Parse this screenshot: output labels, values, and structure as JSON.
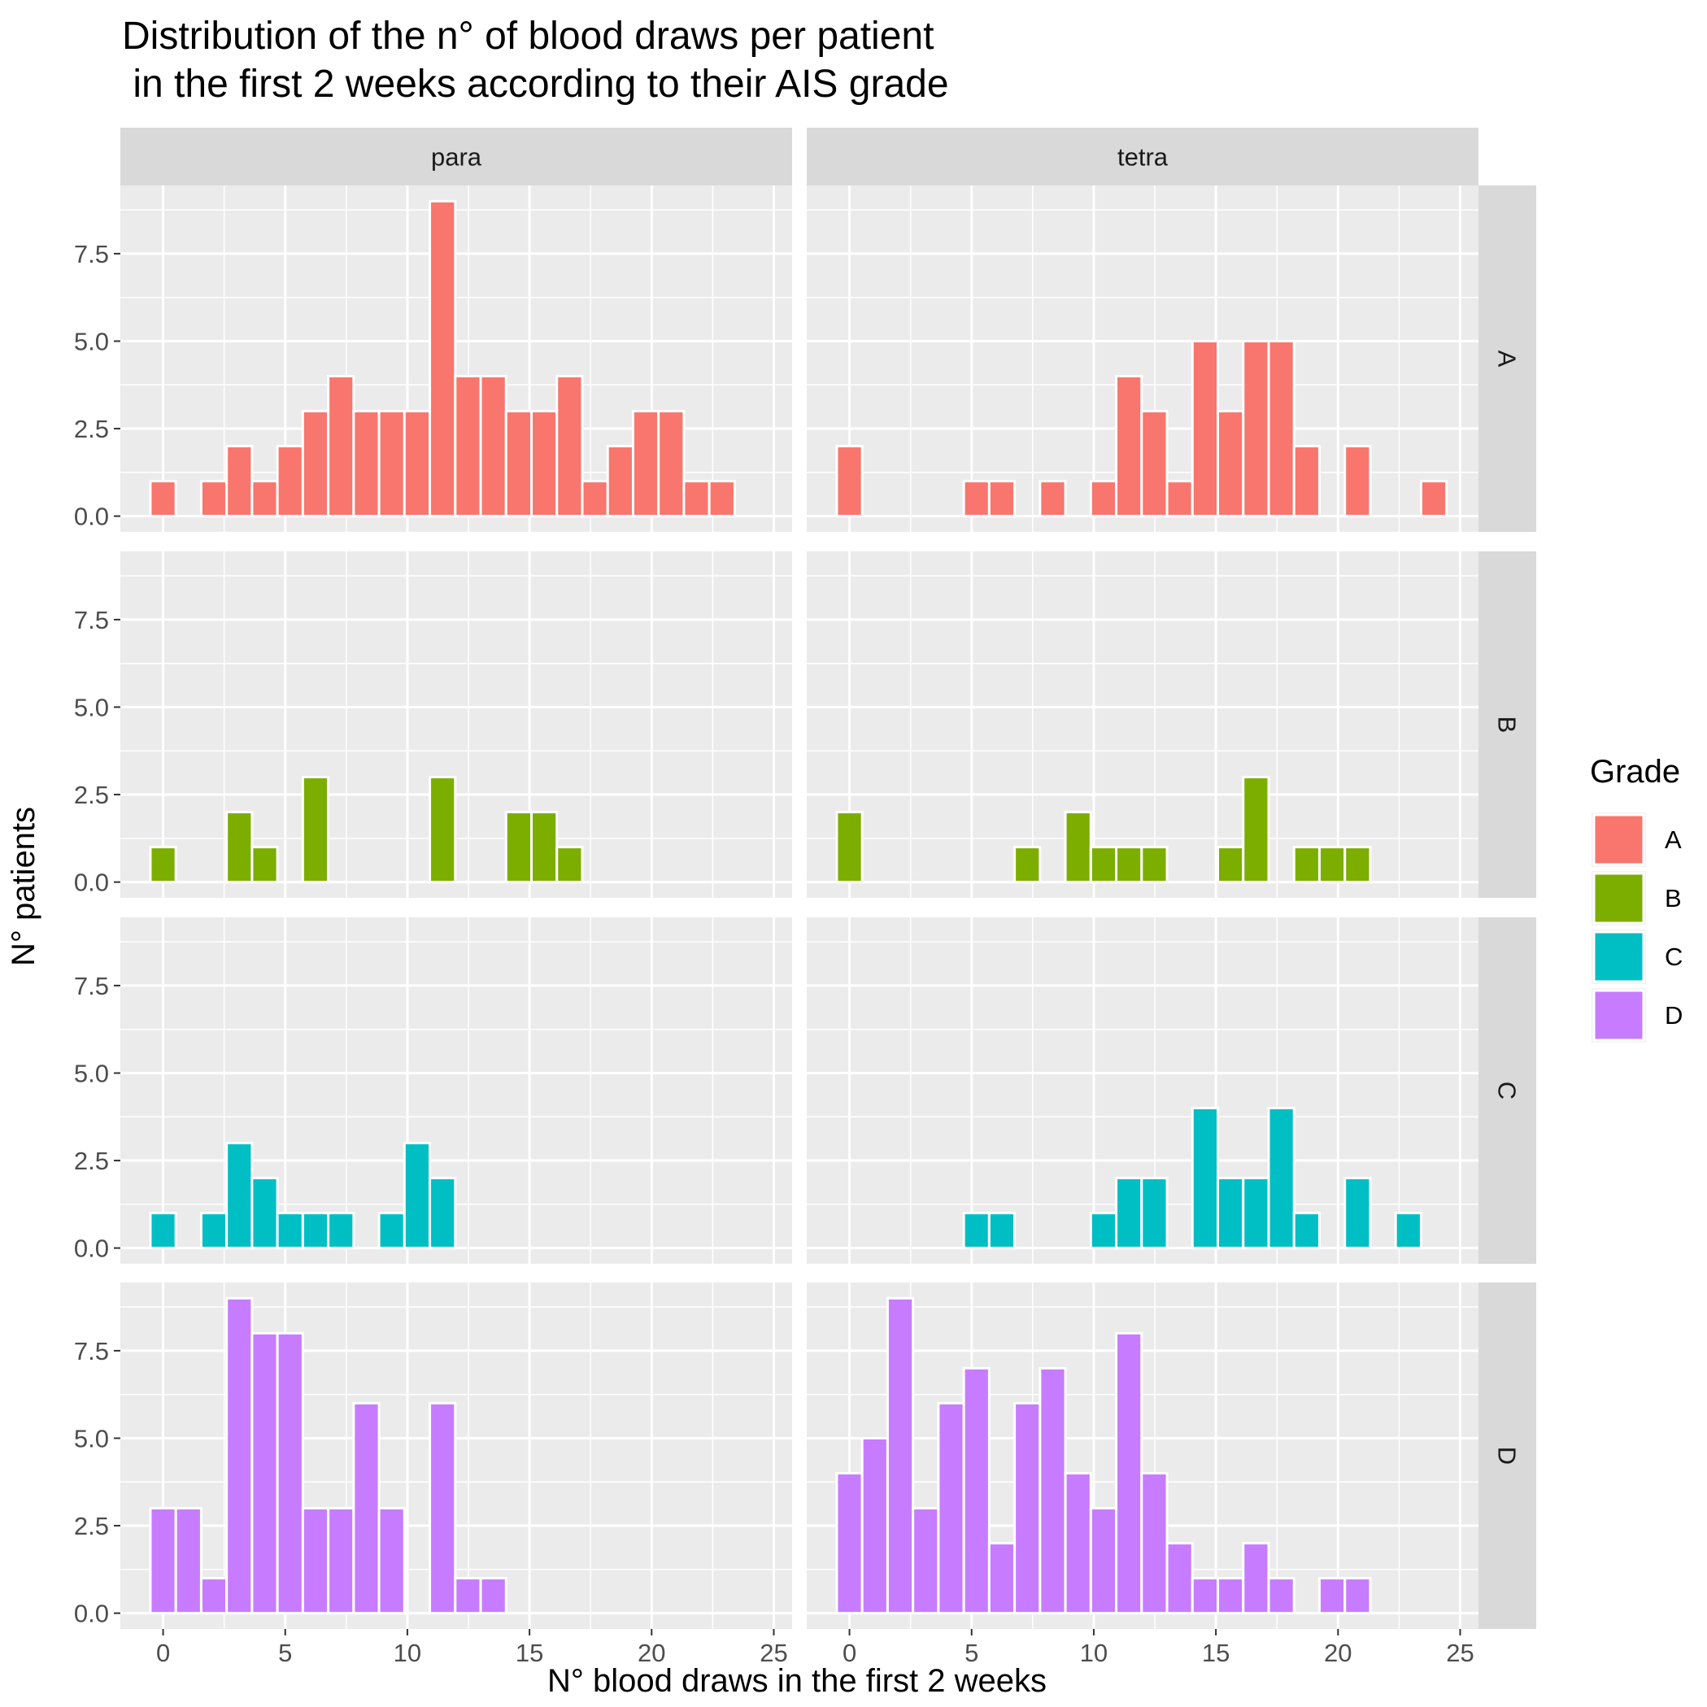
{
  "chart_data": {
    "type": "bar",
    "title_lines": [
      "Distribution of the n° of blood draws per patient",
      " in the first 2 weeks according to their AIS grade"
    ],
    "xlabel": "N° blood draws in the first 2 weeks",
    "ylabel": "N° patients",
    "xlim": [
      -1.75,
      25.75
    ],
    "ylim": [
      -0.45,
      9.45
    ],
    "x_ticks": [
      0,
      5,
      10,
      15,
      20,
      25
    ],
    "y_ticks": [
      0.0,
      2.5,
      5.0,
      7.5
    ],
    "y_tick_labels": [
      "0.0",
      "2.5",
      "5.0",
      "7.5"
    ],
    "bin_width": 1.04,
    "columns": [
      "para",
      "tetra"
    ],
    "rows": [
      "A",
      "B",
      "C",
      "D"
    ],
    "legend": {
      "title": "Grade",
      "position": "right",
      "items": [
        {
          "label": "A",
          "color": "#F8766D"
        },
        {
          "label": "B",
          "color": "#7CAE00"
        },
        {
          "label": "C",
          "color": "#00BFC4"
        },
        {
          "label": "D",
          "color": "#C77CFF"
        }
      ]
    },
    "colors": {
      "A": "#F8766D",
      "B": "#7CAE00",
      "C": "#00BFC4",
      "D": "#C77CFF"
    },
    "panels": [
      {
        "row": "A",
        "col": "para",
        "bins": [
          {
            "x": 0,
            "y": 1
          },
          {
            "x": 2.08,
            "y": 1
          },
          {
            "x": 3.12,
            "y": 2
          },
          {
            "x": 4.16,
            "y": 1
          },
          {
            "x": 5.2,
            "y": 2
          },
          {
            "x": 6.24,
            "y": 3
          },
          {
            "x": 7.28,
            "y": 4
          },
          {
            "x": 8.32,
            "y": 3
          },
          {
            "x": 9.36,
            "y": 3
          },
          {
            "x": 10.4,
            "y": 3
          },
          {
            "x": 11.44,
            "y": 9
          },
          {
            "x": 12.48,
            "y": 4
          },
          {
            "x": 13.52,
            "y": 4
          },
          {
            "x": 14.56,
            "y": 3
          },
          {
            "x": 15.6,
            "y": 3
          },
          {
            "x": 16.64,
            "y": 4
          },
          {
            "x": 17.68,
            "y": 1
          },
          {
            "x": 18.72,
            "y": 2
          },
          {
            "x": 19.76,
            "y": 3
          },
          {
            "x": 20.8,
            "y": 3
          },
          {
            "x": 21.84,
            "y": 1
          },
          {
            "x": 22.88,
            "y": 1
          }
        ]
      },
      {
        "row": "A",
        "col": "tetra",
        "bins": [
          {
            "x": 0,
            "y": 2
          },
          {
            "x": 5.2,
            "y": 1
          },
          {
            "x": 6.24,
            "y": 1
          },
          {
            "x": 8.32,
            "y": 1
          },
          {
            "x": 10.4,
            "y": 1
          },
          {
            "x": 11.44,
            "y": 4
          },
          {
            "x": 12.48,
            "y": 3
          },
          {
            "x": 13.52,
            "y": 1
          },
          {
            "x": 14.56,
            "y": 5
          },
          {
            "x": 15.6,
            "y": 3
          },
          {
            "x": 16.64,
            "y": 5
          },
          {
            "x": 17.68,
            "y": 5
          },
          {
            "x": 18.72,
            "y": 2
          },
          {
            "x": 20.8,
            "y": 2
          },
          {
            "x": 23.92,
            "y": 1
          }
        ]
      },
      {
        "row": "B",
        "col": "para",
        "bins": [
          {
            "x": 0,
            "y": 1
          },
          {
            "x": 3.12,
            "y": 2
          },
          {
            "x": 4.16,
            "y": 1
          },
          {
            "x": 6.24,
            "y": 3
          },
          {
            "x": 11.44,
            "y": 3
          },
          {
            "x": 14.56,
            "y": 2
          },
          {
            "x": 15.6,
            "y": 2
          },
          {
            "x": 16.64,
            "y": 1
          }
        ]
      },
      {
        "row": "B",
        "col": "tetra",
        "bins": [
          {
            "x": 0,
            "y": 2
          },
          {
            "x": 7.28,
            "y": 1
          },
          {
            "x": 9.36,
            "y": 2
          },
          {
            "x": 10.4,
            "y": 1
          },
          {
            "x": 11.44,
            "y": 1
          },
          {
            "x": 12.48,
            "y": 1
          },
          {
            "x": 15.6,
            "y": 1
          },
          {
            "x": 16.64,
            "y": 3
          },
          {
            "x": 18.72,
            "y": 1
          },
          {
            "x": 19.76,
            "y": 1
          },
          {
            "x": 20.8,
            "y": 1
          }
        ]
      },
      {
        "row": "C",
        "col": "para",
        "bins": [
          {
            "x": 0,
            "y": 1
          },
          {
            "x": 2.08,
            "y": 1
          },
          {
            "x": 3.12,
            "y": 3
          },
          {
            "x": 4.16,
            "y": 2
          },
          {
            "x": 5.2,
            "y": 1
          },
          {
            "x": 6.24,
            "y": 1
          },
          {
            "x": 7.28,
            "y": 1
          },
          {
            "x": 9.36,
            "y": 1
          },
          {
            "x": 10.4,
            "y": 3
          },
          {
            "x": 11.44,
            "y": 2
          }
        ]
      },
      {
        "row": "C",
        "col": "tetra",
        "bins": [
          {
            "x": 5.2,
            "y": 1
          },
          {
            "x": 6.24,
            "y": 1
          },
          {
            "x": 10.4,
            "y": 1
          },
          {
            "x": 11.44,
            "y": 2
          },
          {
            "x": 12.48,
            "y": 2
          },
          {
            "x": 14.56,
            "y": 4
          },
          {
            "x": 15.6,
            "y": 2
          },
          {
            "x": 16.64,
            "y": 2
          },
          {
            "x": 17.68,
            "y": 4
          },
          {
            "x": 18.72,
            "y": 1
          },
          {
            "x": 20.8,
            "y": 2
          },
          {
            "x": 22.88,
            "y": 1
          }
        ]
      },
      {
        "row": "D",
        "col": "para",
        "bins": [
          {
            "x": 0,
            "y": 3
          },
          {
            "x": 1.04,
            "y": 3
          },
          {
            "x": 2.08,
            "y": 1
          },
          {
            "x": 3.12,
            "y": 9
          },
          {
            "x": 4.16,
            "y": 8
          },
          {
            "x": 5.2,
            "y": 8
          },
          {
            "x": 6.24,
            "y": 3
          },
          {
            "x": 7.28,
            "y": 3
          },
          {
            "x": 8.32,
            "y": 6
          },
          {
            "x": 9.36,
            "y": 3
          },
          {
            "x": 11.44,
            "y": 6
          },
          {
            "x": 12.48,
            "y": 1
          },
          {
            "x": 13.52,
            "y": 1
          }
        ]
      },
      {
        "row": "D",
        "col": "tetra",
        "bins": [
          {
            "x": 0,
            "y": 4
          },
          {
            "x": 1.04,
            "y": 5
          },
          {
            "x": 2.08,
            "y": 9
          },
          {
            "x": 3.12,
            "y": 3
          },
          {
            "x": 4.16,
            "y": 6
          },
          {
            "x": 5.2,
            "y": 7
          },
          {
            "x": 6.24,
            "y": 2
          },
          {
            "x": 7.28,
            "y": 6
          },
          {
            "x": 8.32,
            "y": 7
          },
          {
            "x": 9.36,
            "y": 4
          },
          {
            "x": 10.4,
            "y": 3
          },
          {
            "x": 11.44,
            "y": 8
          },
          {
            "x": 12.48,
            "y": 4
          },
          {
            "x": 13.52,
            "y": 2
          },
          {
            "x": 14.56,
            "y": 1
          },
          {
            "x": 15.6,
            "y": 1
          },
          {
            "x": 16.64,
            "y": 2
          },
          {
            "x": 17.68,
            "y": 1
          },
          {
            "x": 19.76,
            "y": 1
          },
          {
            "x": 20.8,
            "y": 1
          }
        ]
      }
    ]
  }
}
